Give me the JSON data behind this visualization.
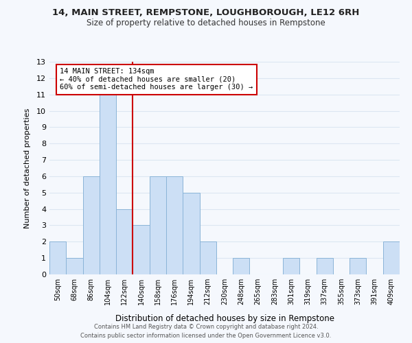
{
  "title1": "14, MAIN STREET, REMPSTONE, LOUGHBOROUGH, LE12 6RH",
  "title2": "Size of property relative to detached houses in Rempstone",
  "xlabel": "Distribution of detached houses by size in Rempstone",
  "ylabel": "Number of detached properties",
  "bin_labels": [
    "50sqm",
    "68sqm",
    "86sqm",
    "104sqm",
    "122sqm",
    "140sqm",
    "158sqm",
    "176sqm",
    "194sqm",
    "212sqm",
    "230sqm",
    "248sqm",
    "265sqm",
    "283sqm",
    "301sqm",
    "319sqm",
    "337sqm",
    "355sqm",
    "373sqm",
    "391sqm",
    "409sqm"
  ],
  "bar_values": [
    2,
    1,
    6,
    11,
    4,
    3,
    6,
    6,
    5,
    2,
    0,
    1,
    0,
    0,
    1,
    0,
    1,
    0,
    1,
    0,
    2
  ],
  "bar_color": "#ccdff5",
  "bar_edge_color": "#8ab4d8",
  "property_line_x": 4.5,
  "property_line_color": "#cc0000",
  "annotation_title": "14 MAIN STREET: 134sqm",
  "annotation_line1": "← 40% of detached houses are smaller (20)",
  "annotation_line2": "60% of semi-detached houses are larger (30) →",
  "annotation_box_facecolor": "#ffffff",
  "annotation_box_edge": "#cc0000",
  "ylim": [
    0,
    13
  ],
  "yticks": [
    0,
    1,
    2,
    3,
    4,
    5,
    6,
    7,
    8,
    9,
    10,
    11,
    12,
    13
  ],
  "footer1": "Contains HM Land Registry data © Crown copyright and database right 2024.",
  "footer2": "Contains public sector information licensed under the Open Government Licence v3.0.",
  "fig_facecolor": "#f5f8fd",
  "plot_facecolor": "#f5f8fd",
  "grid_color": "#dce6f2"
}
